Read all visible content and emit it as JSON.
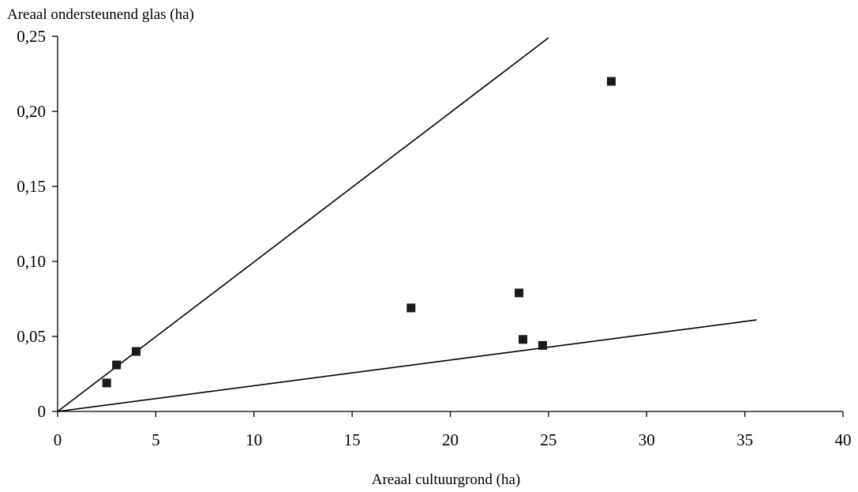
{
  "chart_data": {
    "type": "scatter",
    "title": "",
    "ylabel": "Areaal ondersteunend glas (ha)",
    "xlabel": "Areaal cultuurgrond (ha)",
    "xlim": [
      0,
      40
    ],
    "ylim": [
      0,
      0.25
    ],
    "x_ticks": [
      0,
      5,
      10,
      15,
      20,
      25,
      30,
      35,
      40
    ],
    "x_tick_labels": [
      "0",
      "5",
      "10",
      "15",
      "20",
      "25",
      "30",
      "35",
      "40"
    ],
    "y_ticks": [
      0,
      0.05,
      0.1,
      0.15,
      0.2,
      0.25
    ],
    "y_tick_labels": [
      "0",
      "0,05",
      "0,10",
      "0,15",
      "0,20",
      "0,25"
    ],
    "grid": false,
    "legend": "none",
    "points": [
      {
        "x": 2.5,
        "y": 0.019
      },
      {
        "x": 3.0,
        "y": 0.031
      },
      {
        "x": 4.0,
        "y": 0.04
      },
      {
        "x": 18.0,
        "y": 0.069
      },
      {
        "x": 23.5,
        "y": 0.079
      },
      {
        "x": 23.7,
        "y": 0.048
      },
      {
        "x": 24.7,
        "y": 0.044
      },
      {
        "x": 28.2,
        "y": 0.22
      }
    ],
    "reference_lines": [
      {
        "x1": 0,
        "y1": 0,
        "x2": 25.0,
        "y2": 0.249
      },
      {
        "x1": 0,
        "y1": 0,
        "x2": 35.6,
        "y2": 0.061
      }
    ],
    "marker_color": "#1a1a1a",
    "line_color": "#000000"
  }
}
